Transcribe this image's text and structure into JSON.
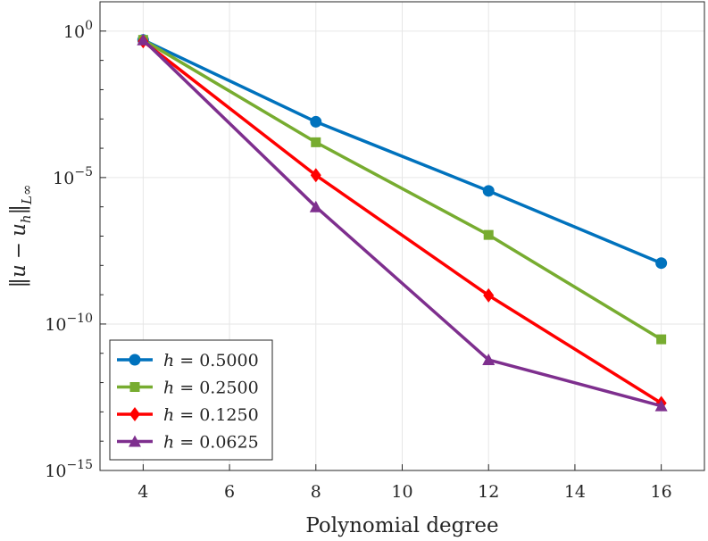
{
  "chart_data": {
    "type": "line",
    "yscale": "log",
    "title": "",
    "xlabel": "Polynomial degree",
    "ylabel": "||u − u_h||_{L∞}",
    "ylabel_parts": {
      "norm": "‖",
      "u": "u",
      "minus": "−",
      "uh": "u",
      "h_sub": "h",
      "sub": "L",
      "inf": "∞"
    },
    "xlim": [
      3,
      17
    ],
    "ylim_log10": [
      -15,
      1
    ],
    "xticks": [
      4,
      6,
      8,
      10,
      12,
      14,
      16
    ],
    "xtick_labels": [
      "4",
      "6",
      "8",
      "10",
      "12",
      "14",
      "16"
    ],
    "yticks_log10": [
      0,
      -5,
      -10,
      -15
    ],
    "ytick_labels": [
      {
        "base": "10",
        "exp": "0"
      },
      {
        "base": "10",
        "exp": "−5"
      },
      {
        "base": "10",
        "exp": "−10"
      },
      {
        "base": "10",
        "exp": "−15"
      }
    ],
    "grid": true,
    "legend_position": "bottom-left",
    "x": [
      4,
      8,
      12,
      16
    ],
    "series": [
      {
        "name": "h = 0.5000",
        "var": "h",
        "eq": "= 0.5000",
        "color": "#0072BD",
        "marker": "circle",
        "values": [
          0.5,
          0.0008,
          3.5e-06,
          1.2e-08
        ]
      },
      {
        "name": "h = 0.2500",
        "var": "h",
        "eq": "= 0.2500",
        "color": "#77AC30",
        "marker": "square",
        "values": [
          0.5,
          0.00016,
          1.1e-07,
          3e-11
        ]
      },
      {
        "name": "h = 0.1250",
        "var": "h",
        "eq": "= 0.1250",
        "color": "#FF0000",
        "marker": "diamond",
        "values": [
          0.45,
          1.2e-05,
          9.5e-10,
          2e-13
        ]
      },
      {
        "name": "h = 0.0625",
        "var": "h",
        "eq": "= 0.0625",
        "color": "#7E2F8E",
        "marker": "triangle",
        "values": [
          0.5,
          1e-06,
          6e-12,
          1.6e-13
        ]
      }
    ]
  }
}
